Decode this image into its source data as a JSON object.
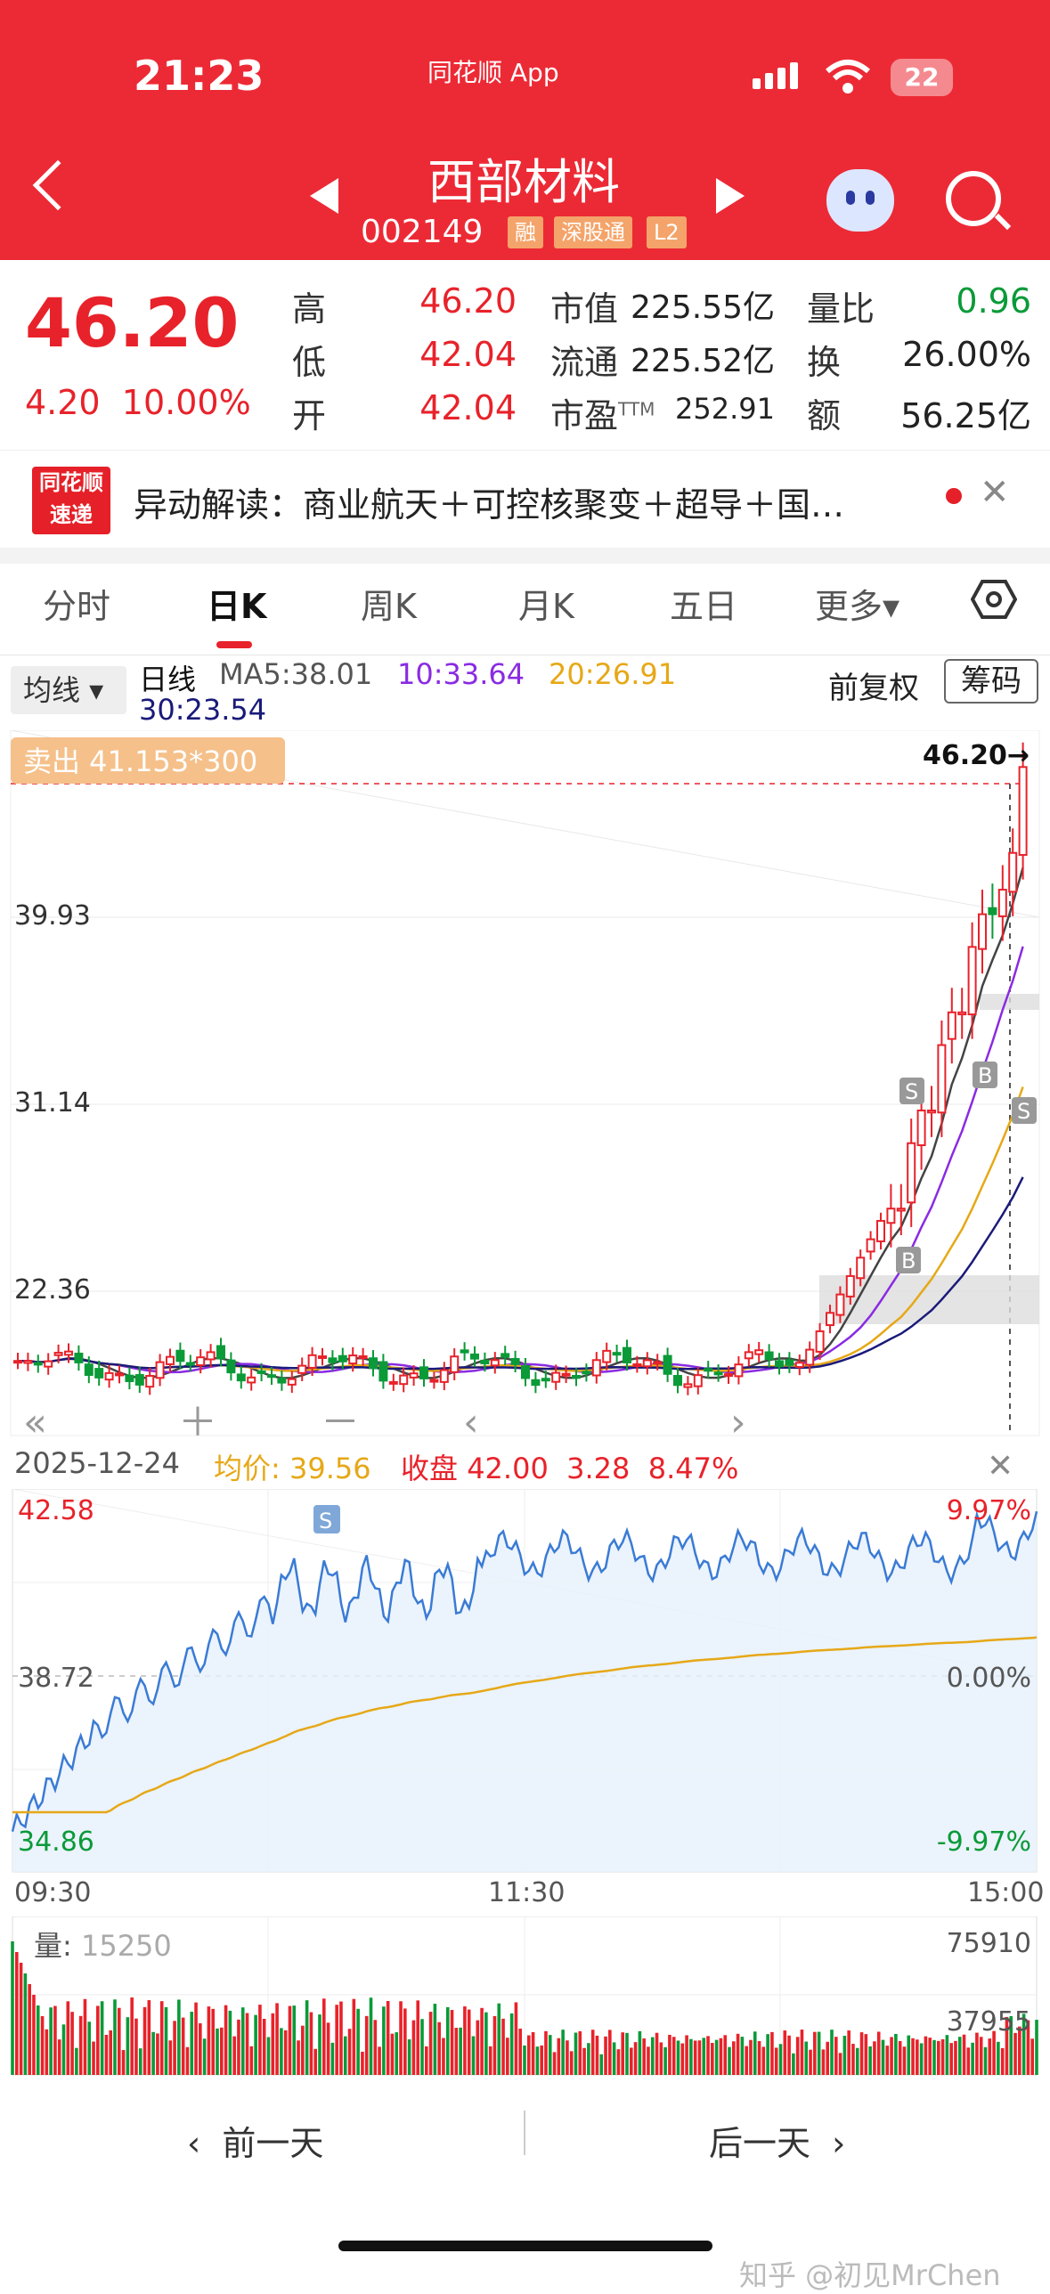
{
  "status_bar": {
    "time": "21:23",
    "app_name": "同花顺 App",
    "battery": "22"
  },
  "header": {
    "title": "西部材料",
    "code": "002149",
    "tags": [
      "融",
      "深股通",
      "L2"
    ]
  },
  "quote": {
    "price": "46.20",
    "change": "4.20",
    "change_pct": "10.00%",
    "high_label": "高",
    "high": "46.20",
    "low_label": "低",
    "low": "42.04",
    "open_label": "开",
    "open": "42.04",
    "mcap_label": "市值",
    "mcap": "225.55亿",
    "float_label": "流通",
    "float": "225.52亿",
    "pe_label": "市盈",
    "pe_suffix": "TTM",
    "pe": "252.91",
    "vr_label": "量比",
    "vr": "0.96",
    "turnover_label": "换",
    "turnover": "26.00%",
    "amount_label": "额",
    "amount": "56.25亿"
  },
  "news": {
    "logo_line1": "同花顺",
    "logo_line2": "速递",
    "text": "异动解读：商业航天＋可控核聚变＋超导＋国…"
  },
  "tabs": [
    "分时",
    "日K",
    "周K",
    "月K",
    "五日",
    "更多▾"
  ],
  "kline_legend": {
    "selector": "均线 ▾",
    "label": "日线",
    "ma5": "MA5:38.01",
    "ma10": "10:33.64",
    "ma20": "20:26.91",
    "ma30": "30:23.54",
    "adjust": "前复权",
    "chip": "筹码"
  },
  "kline": {
    "y_labels": [
      "39.93",
      "31.14",
      "22.36"
    ],
    "last_price_label": "46.20→",
    "trade_note": "卖出 41.153*300",
    "colors": {
      "up": "#e8222a",
      "down": "#0a9a38",
      "ma5": "#444444",
      "ma10": "#8a2be2",
      "ma20": "#e6a817",
      "ma30": "#1a1a7a"
    }
  },
  "intraday": {
    "date": "2025-12-24",
    "avg_label": "均价:",
    "avg": "39.56",
    "close_label": "收盘",
    "close": "42.00",
    "close_chg": "3.28",
    "close_pct": "8.47%",
    "y_top": "42.58",
    "y_mid": "38.72",
    "y_bot": "34.86",
    "pct_top": "9.97%",
    "pct_mid": "0.00%",
    "pct_bot": "-9.97%",
    "times": [
      "09:30",
      "11:30",
      "15:00"
    ]
  },
  "volume": {
    "label": "量:",
    "value": "15250",
    "top": "75910",
    "mid": "37955"
  },
  "bottom_nav": {
    "prev": "前一天",
    "next": "后一天"
  },
  "watermark": "知乎 @初见MrChen",
  "chart_data": [
    {
      "type": "line",
      "title": "",
      "series": [
        {
          "name": "MA5",
          "values": [
            38.01
          ]
        },
        {
          "name": "MA10",
          "values": [
            33.64
          ]
        },
        {
          "name": "MA20",
          "values": [
            26.91
          ]
        },
        {
          "name": "MA30",
          "values": [
            23.54
          ]
        }
      ],
      "ylim": [
        13.5,
        48.0
      ],
      "last_price": 46.2
    },
    {
      "type": "line",
      "x": [
        "09:30",
        "11:30",
        "15:00"
      ],
      "series": [
        {
          "name": "均价",
          "values": [
            36.0,
            38.9,
            39.56
          ]
        }
      ],
      "ylim": [
        34.86,
        42.58
      ]
    }
  ]
}
